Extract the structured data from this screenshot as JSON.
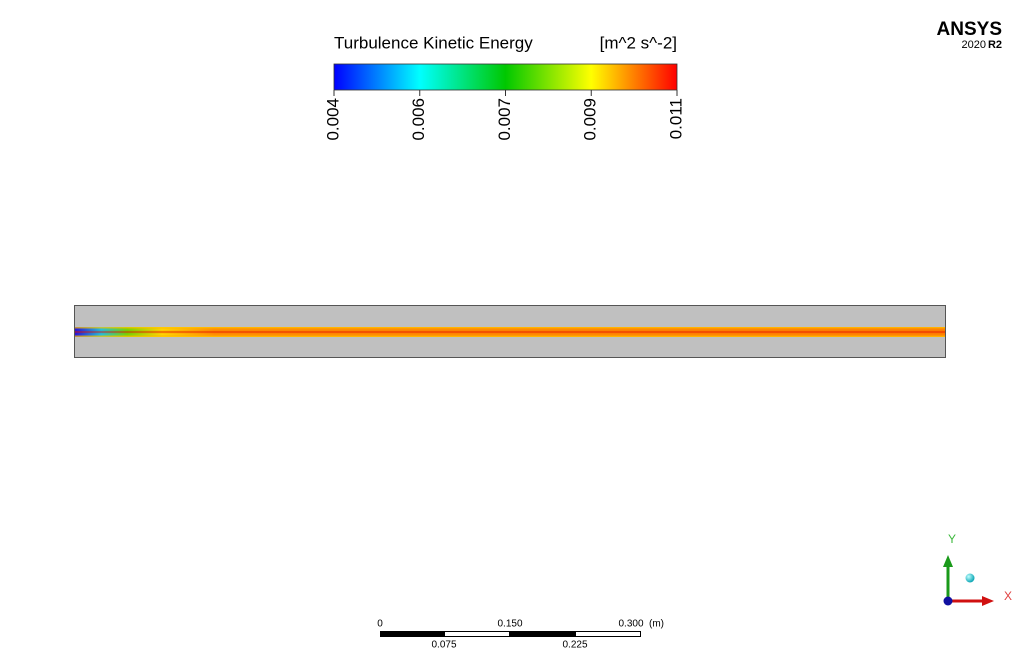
{
  "legend": {
    "title": "Turbulence Kinetic Energy",
    "unit": "[m^2 s^-2]",
    "ticks": [
      "0.004",
      "0.006",
      "0.007",
      "0.009",
      "0.011"
    ]
  },
  "logo": {
    "brand": "ANSYS",
    "version": "2020",
    "release": "R2"
  },
  "scale_bar": {
    "top_labels": [
      "0",
      "0.150",
      "0.300"
    ],
    "unit": "(m)",
    "bottom_labels": [
      "0.075",
      "0.225"
    ]
  },
  "triad": {
    "y_label": "Y",
    "x_label": "X"
  }
}
